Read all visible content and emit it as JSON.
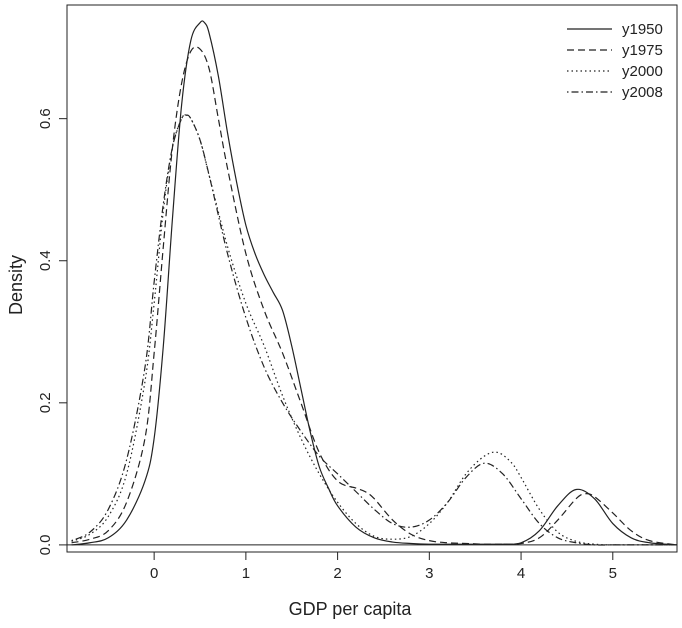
{
  "chart_data": {
    "type": "line",
    "title": "",
    "xlabel": "GDP per capita",
    "ylabel": "Density",
    "xlim": [
      -0.95,
      5.7
    ],
    "ylim": [
      -0.01,
      0.76
    ],
    "xticks": [
      0,
      1,
      2,
      3,
      4,
      5
    ],
    "yticks": [
      0.0,
      0.2,
      0.4,
      0.6
    ],
    "ytick_labels": [
      "0.0",
      "0.2",
      "0.4",
      "0.6"
    ],
    "grid": false,
    "baseline": 0,
    "legend_position": "top-right",
    "series": [
      {
        "name": "y1950",
        "dash": "solid",
        "x": [
          -0.9,
          -0.7,
          -0.5,
          -0.3,
          -0.1,
          0.0,
          0.1,
          0.2,
          0.3,
          0.4,
          0.5,
          0.55,
          0.6,
          0.7,
          0.8,
          0.9,
          1.0,
          1.1,
          1.2,
          1.3,
          1.4,
          1.5,
          1.6,
          1.7,
          1.8,
          1.9,
          2.0,
          2.2,
          2.4,
          2.6,
          2.8,
          3.0,
          3.2,
          3.4,
          3.6,
          3.8,
          4.0,
          4.2,
          4.4,
          4.6,
          4.8,
          5.0,
          5.2,
          5.4,
          5.7
        ],
        "y": [
          0.0,
          0.003,
          0.01,
          0.035,
          0.09,
          0.15,
          0.28,
          0.46,
          0.62,
          0.71,
          0.735,
          0.735,
          0.72,
          0.66,
          0.58,
          0.51,
          0.45,
          0.41,
          0.38,
          0.355,
          0.33,
          0.28,
          0.22,
          0.16,
          0.11,
          0.08,
          0.055,
          0.025,
          0.01,
          0.004,
          0.002,
          0.001,
          0.001,
          0.001,
          0.001,
          0.001,
          0.003,
          0.02,
          0.055,
          0.078,
          0.065,
          0.03,
          0.01,
          0.003,
          0.0
        ]
      },
      {
        "name": "y1975",
        "dash": "dashed",
        "x": [
          -0.9,
          -0.7,
          -0.5,
          -0.3,
          -0.1,
          0.0,
          0.1,
          0.2,
          0.3,
          0.4,
          0.5,
          0.6,
          0.7,
          0.8,
          1.0,
          1.2,
          1.4,
          1.6,
          1.8,
          2.0,
          2.2,
          2.3,
          2.4,
          2.6,
          2.8,
          3.0,
          3.2,
          3.4,
          3.6,
          3.8,
          4.0,
          4.2,
          4.4,
          4.6,
          4.7,
          4.8,
          5.0,
          5.2,
          5.4,
          5.7
        ],
        "y": [
          0.003,
          0.008,
          0.02,
          0.06,
          0.15,
          0.27,
          0.42,
          0.56,
          0.65,
          0.695,
          0.698,
          0.67,
          0.6,
          0.53,
          0.41,
          0.33,
          0.27,
          0.2,
          0.13,
          0.09,
          0.08,
          0.075,
          0.065,
          0.035,
          0.015,
          0.006,
          0.003,
          0.002,
          0.001,
          0.001,
          0.002,
          0.01,
          0.035,
          0.065,
          0.072,
          0.068,
          0.045,
          0.02,
          0.006,
          0.0
        ]
      },
      {
        "name": "y2000",
        "dash": "dotted",
        "x": [
          -0.9,
          -0.7,
          -0.5,
          -0.3,
          -0.1,
          0.0,
          0.1,
          0.2,
          0.3,
          0.35,
          0.4,
          0.5,
          0.6,
          0.8,
          1.0,
          1.2,
          1.4,
          1.6,
          1.8,
          2.0,
          2.2,
          2.4,
          2.6,
          2.8,
          3.0,
          3.2,
          3.4,
          3.6,
          3.75,
          3.9,
          4.0,
          4.2,
          4.4,
          4.6,
          4.8,
          5.0,
          5.4,
          5.7
        ],
        "y": [
          0.005,
          0.015,
          0.04,
          0.1,
          0.23,
          0.34,
          0.47,
          0.56,
          0.6,
          0.605,
          0.6,
          0.57,
          0.52,
          0.42,
          0.34,
          0.28,
          0.21,
          0.15,
          0.1,
          0.06,
          0.03,
          0.012,
          0.008,
          0.012,
          0.03,
          0.06,
          0.1,
          0.125,
          0.13,
          0.115,
          0.095,
          0.05,
          0.018,
          0.005,
          0.001,
          0.0,
          0.0,
          0.0
        ]
      },
      {
        "name": "y2008",
        "dash": "dotdash",
        "x": [
          -0.9,
          -0.7,
          -0.5,
          -0.3,
          -0.1,
          0.0,
          0.1,
          0.2,
          0.3,
          0.35,
          0.4,
          0.5,
          0.6,
          0.8,
          1.0,
          1.2,
          1.4,
          1.6,
          1.8,
          2.0,
          2.2,
          2.4,
          2.6,
          2.8,
          3.0,
          3.2,
          3.4,
          3.6,
          3.8,
          4.0,
          4.2,
          4.4,
          4.6,
          4.8,
          5.0,
          5.4,
          5.7
        ],
        "y": [
          0.006,
          0.018,
          0.05,
          0.12,
          0.25,
          0.37,
          0.48,
          0.56,
          0.6,
          0.605,
          0.6,
          0.57,
          0.52,
          0.41,
          0.32,
          0.25,
          0.2,
          0.16,
          0.125,
          0.1,
          0.075,
          0.05,
          0.03,
          0.025,
          0.035,
          0.06,
          0.095,
          0.115,
          0.1,
          0.065,
          0.03,
          0.01,
          0.003,
          0.0,
          0.0,
          0.0,
          0.0
        ]
      }
    ]
  }
}
